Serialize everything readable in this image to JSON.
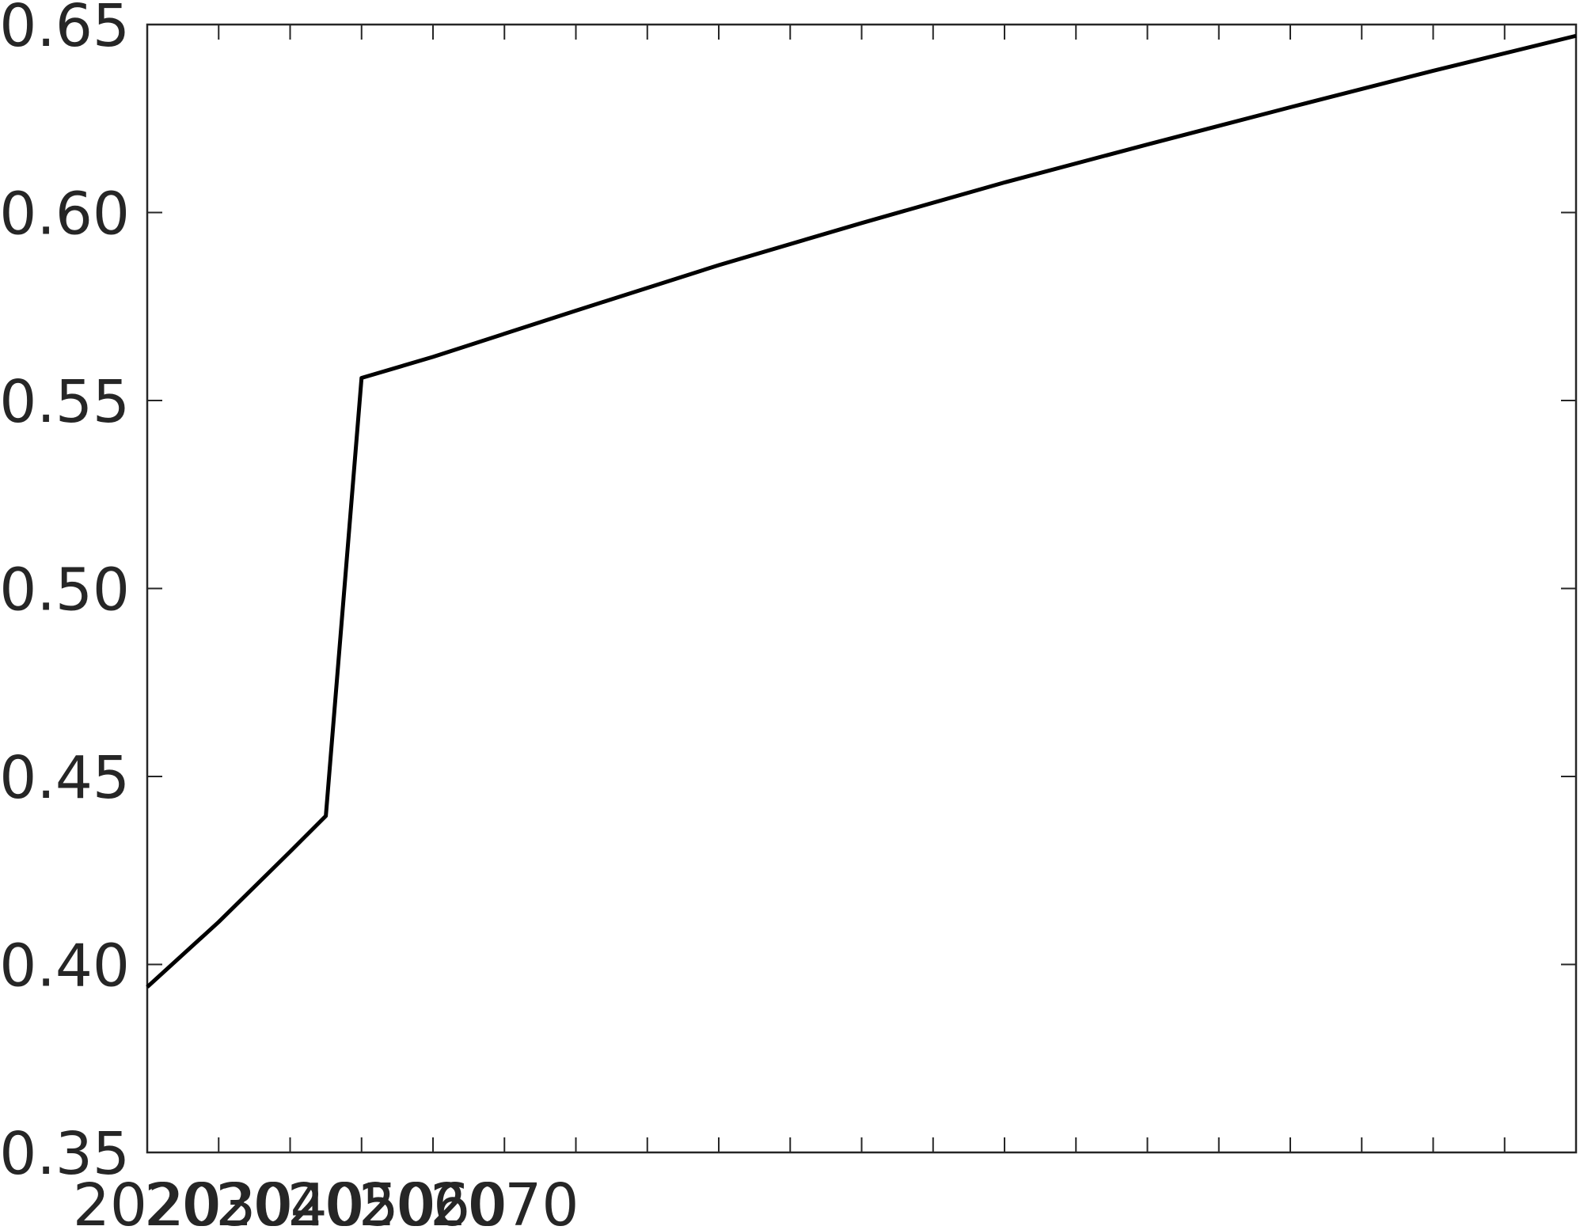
{
  "chart_data": {
    "type": "line",
    "x": [
      0,
      1,
      2,
      2.5,
      3,
      4,
      6,
      8,
      10,
      12,
      14,
      16,
      18,
      20
    ],
    "series": [
      {
        "color": "#000000",
        "values": [
          0.394,
          0.4113,
          0.43,
          0.4395,
          0.556,
          0.5616,
          0.5739,
          0.586,
          0.5972,
          0.608,
          0.6181,
          0.628,
          0.6377,
          0.647
        ]
      }
    ],
    "xlim": [
      0,
      20
    ],
    "xticks": [
      0,
      1,
      2,
      3,
      4,
      5,
      6,
      7,
      8,
      9,
      10,
      11,
      12,
      13,
      14,
      15,
      16,
      17,
      18,
      19,
      20
    ],
    "xticklabels": [
      "2020",
      "2030",
      "2040",
      "2050",
      "2060",
      "2070",
      null,
      null,
      null,
      null,
      null,
      null,
      null,
      null,
      null,
      null,
      null,
      null,
      null,
      null,
      null
    ],
    "ylim": [
      0.35,
      0.65
    ],
    "yticks": [
      {
        "value": 0.35,
        "label": "0.35"
      },
      {
        "value": 0.4,
        "label": "0.40"
      },
      {
        "value": 0.45,
        "label": "0.45"
      },
      {
        "value": 0.5,
        "label": "0.50"
      },
      {
        "value": 0.55,
        "label": "0.55"
      },
      {
        "value": 0.6,
        "label": "0.60"
      },
      {
        "value": 0.65,
        "label": "0.65"
      }
    ],
    "grid": false
  }
}
